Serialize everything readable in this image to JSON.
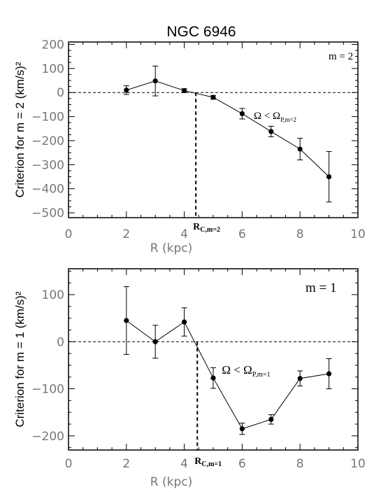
{
  "figure_title": "NGC 6946",
  "chart_data": [
    {
      "type": "line",
      "title": "NGC 6946",
      "xlabel": "R (kpc)",
      "ylabel": "Criterion for m = 2 (km/s)²",
      "xlim": [
        0,
        10
      ],
      "ylim": [
        -520,
        210
      ],
      "x_ticks": [
        "0",
        "2",
        "4",
        "6",
        "8",
        "10"
      ],
      "y_ticks": [
        "200",
        "100",
        "0",
        "−100",
        "−200",
        "−300",
        "−400",
        "−500"
      ],
      "panel_label": "m = 2",
      "annotation": {
        "text": "Ω < Ω",
        "subscript": "P,m=2",
        "x": 6.4,
        "y": -110
      },
      "marker": {
        "label": "R",
        "subscript": "C,m=2",
        "x": 4.4
      },
      "series": [
        {
          "x": [
            2,
            3,
            4,
            5,
            6,
            7,
            8,
            9
          ],
          "y": [
            10,
            48,
            8,
            -20,
            -88,
            -162,
            -235,
            -350
          ],
          "err": [
            18,
            62,
            8,
            8,
            22,
            22,
            45,
            105
          ]
        }
      ],
      "reference_line": 0
    },
    {
      "type": "line",
      "title": "",
      "xlabel": "R (kpc)",
      "ylabel": "Criterion for m = 1 (km/s)²",
      "xlim": [
        0,
        10
      ],
      "ylim": [
        -230,
        155
      ],
      "x_ticks": [
        "0",
        "2",
        "4",
        "6",
        "8",
        "10"
      ],
      "y_ticks": [
        "100",
        "0",
        "−100",
        "−200"
      ],
      "panel_label": "m = 1",
      "annotation": {
        "text": "Ω < Ω",
        "subscript": "P,m=1",
        "x": 5.3,
        "y": -68
      },
      "marker": {
        "label": "R",
        "subscript": "C,m=1",
        "x": 4.45
      },
      "series": [
        {
          "x": [
            2,
            3,
            4,
            5,
            6,
            7,
            8,
            9
          ],
          "y": [
            45,
            0,
            42,
            -77,
            -185,
            -165,
            -78,
            -68
          ],
          "err": [
            72,
            35,
            30,
            22,
            12,
            10,
            16,
            32
          ]
        }
      ],
      "reference_line": 0
    }
  ]
}
